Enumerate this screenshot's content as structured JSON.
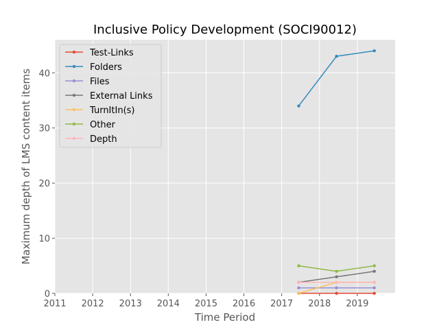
{
  "chart_data": {
    "type": "line",
    "title": "Inclusive Policy Development (SOCI90012)",
    "xlabel": "Time Period",
    "ylabel": "Maximum depth of LMS content items",
    "xlim": [
      2011,
      2020
    ],
    "ylim": [
      0,
      46
    ],
    "xticks": [
      "2011",
      "2012",
      "2013",
      "2014",
      "2015",
      "2016",
      "2017",
      "2018",
      "2019"
    ],
    "yticks": [
      "0",
      "10",
      "20",
      "30",
      "40"
    ],
    "grid": true,
    "legend_position": "top-left",
    "x": [
      2017.45,
      2018.45,
      2019.45
    ],
    "series": [
      {
        "name": "Test-Links",
        "color": "#E24A33",
        "values": [
          0,
          0,
          0
        ]
      },
      {
        "name": "Folders",
        "color": "#348ABD",
        "values": [
          34,
          43,
          44
        ]
      },
      {
        "name": "Files",
        "color": "#988ED5",
        "values": [
          1,
          1,
          1
        ]
      },
      {
        "name": "External Links",
        "color": "#777777",
        "values": [
          2,
          3,
          4
        ]
      },
      {
        "name": "TurnItIn(s)",
        "color": "#FBC15E",
        "values": [
          0,
          2,
          2
        ]
      },
      {
        "name": "Other",
        "color": "#8EBA42",
        "values": [
          5,
          4,
          5
        ]
      },
      {
        "name": "Depth",
        "color": "#FFB5B8",
        "values": [
          2,
          2,
          2
        ]
      }
    ]
  }
}
